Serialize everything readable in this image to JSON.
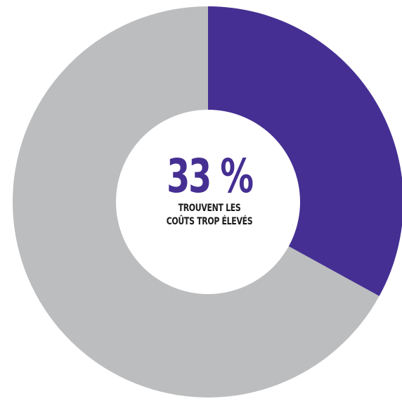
{
  "chart_data": {
    "type": "pie",
    "variant": "donut",
    "slices": [
      {
        "value": 33,
        "color": "#452f92"
      },
      {
        "value": 67,
        "color": "#bcbdbf"
      }
    ],
    "center_value": "33 %",
    "center_caption_line1": "TROUVENT LES",
    "center_caption_line2": "COÛTS TROP ÉLEVÉS"
  },
  "colors": {
    "accent": "#452f92",
    "remainder": "#bcbdbf",
    "hole": "#ffffff",
    "caption_text": "#1a1a1a"
  }
}
